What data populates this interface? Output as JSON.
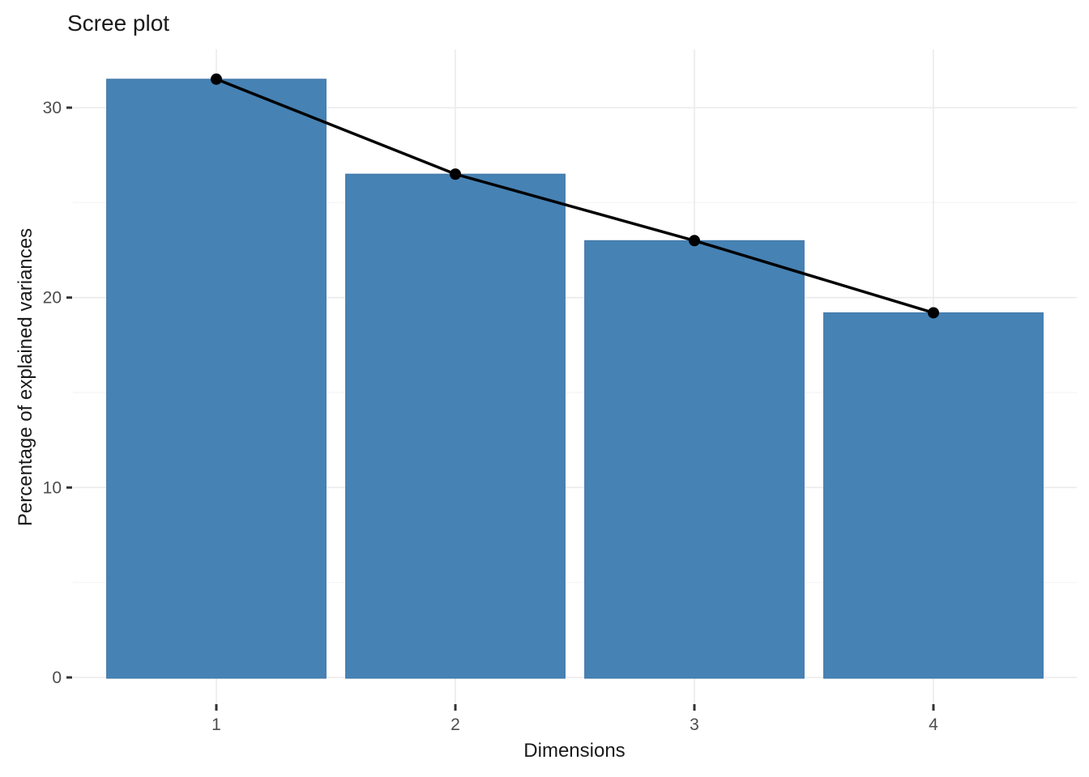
{
  "chart_data": {
    "type": "bar",
    "subtype": "scree-plot-with-line-overlay",
    "title": "Scree plot",
    "xlabel": "Dimensions",
    "ylabel": "Percentage of explained variances",
    "categories": [
      "1",
      "2",
      "3",
      "4"
    ],
    "values": [
      31.5,
      26.5,
      23.0,
      19.2
    ],
    "series": [
      {
        "name": "eigenvalue-bars",
        "type": "bar",
        "values": [
          31.5,
          26.5,
          23.0,
          19.2
        ]
      },
      {
        "name": "eigenvalue-line",
        "type": "line+point",
        "values": [
          31.5,
          26.5,
          23.0,
          19.2
        ]
      }
    ],
    "yticks": [
      0,
      10,
      20,
      30
    ],
    "ytick_labels": [
      "0",
      "10",
      "20",
      "30"
    ],
    "yticks_minor": [
      5,
      15,
      25
    ],
    "ylim": [
      0,
      33.1
    ],
    "grid": true,
    "legend": "none",
    "colors": {
      "bar_fill": "#4682B4",
      "bar_border": "#4076A8",
      "line": "#000000",
      "point": "#000000",
      "grid_major": "#EBEBEB",
      "grid_minor": "#F4F4F4",
      "tick_mark": "#333333",
      "axis_text": "#4D4D4D",
      "title_text": "#1A1A1A",
      "background": "#FFFFFF"
    }
  }
}
